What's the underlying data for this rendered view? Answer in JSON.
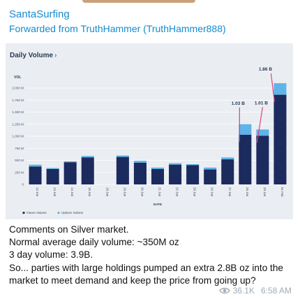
{
  "message": {
    "sender": "SantaSurfing",
    "forwarded_from": "Forwarded from TruthHammer (TruthHammer888)",
    "text_lines": [
      "Comments on Silver market.",
      "Normal average daily volume: ~350M oz",
      "3 day volume: 3.9B.",
      "So... parties with large holdings pumped an extra 2.8B oz into the",
      "market to meet demand and keep the price from going up?"
    ],
    "views": "36.1K",
    "time": "6:58 AM",
    "view_icon": "eye-icon"
  },
  "chart_data": {
    "type": "bar",
    "title": "Daily Volume",
    "ylabel": "VOL",
    "xlabel": "DATE",
    "ylim": [
      0,
      2000
    ],
    "y_ticks": [
      "2,000 M",
      "1,750 M",
      "1,500 M",
      "1,250 M",
      "1,000 M",
      "750 M",
      "500 M",
      "250 M",
      "0"
    ],
    "categories": [
      "12 Jan",
      "13 Jan",
      "14 Jan",
      "15 Jan",
      "18 Jan",
      "19 Jan",
      "20 Jan",
      "21 Jan",
      "22 Jan",
      "25 Jan",
      "26 Jan",
      "27 Jan",
      "28 Jan",
      "29 Jan",
      "01 Feb"
    ],
    "series": [
      {
        "name": "Future Volume",
        "values": [
          370,
          320,
          460,
          560,
          0,
          570,
          450,
          320,
          410,
          400,
          310,
          520,
          1030,
          1010,
          1860
        ]
      },
      {
        "name": "Options Volume",
        "values": [
          40,
          20,
          20,
          30,
          0,
          30,
          40,
          30,
          30,
          20,
          40,
          40,
          220,
          130,
          240
        ]
      }
    ],
    "annotations": [
      {
        "label": "1.03 B",
        "category": "28 Jan"
      },
      {
        "label": "1.01 B",
        "category": "29 Jan"
      },
      {
        "label": "1.86 B",
        "category": "01 Feb"
      }
    ],
    "colors": {
      "future": "#1c2b5e",
      "options": "#5fb4ea",
      "annotation": "#e0407a",
      "grid": "#ffffff"
    },
    "legend_placement": "bottom-left",
    "grid": true
  }
}
